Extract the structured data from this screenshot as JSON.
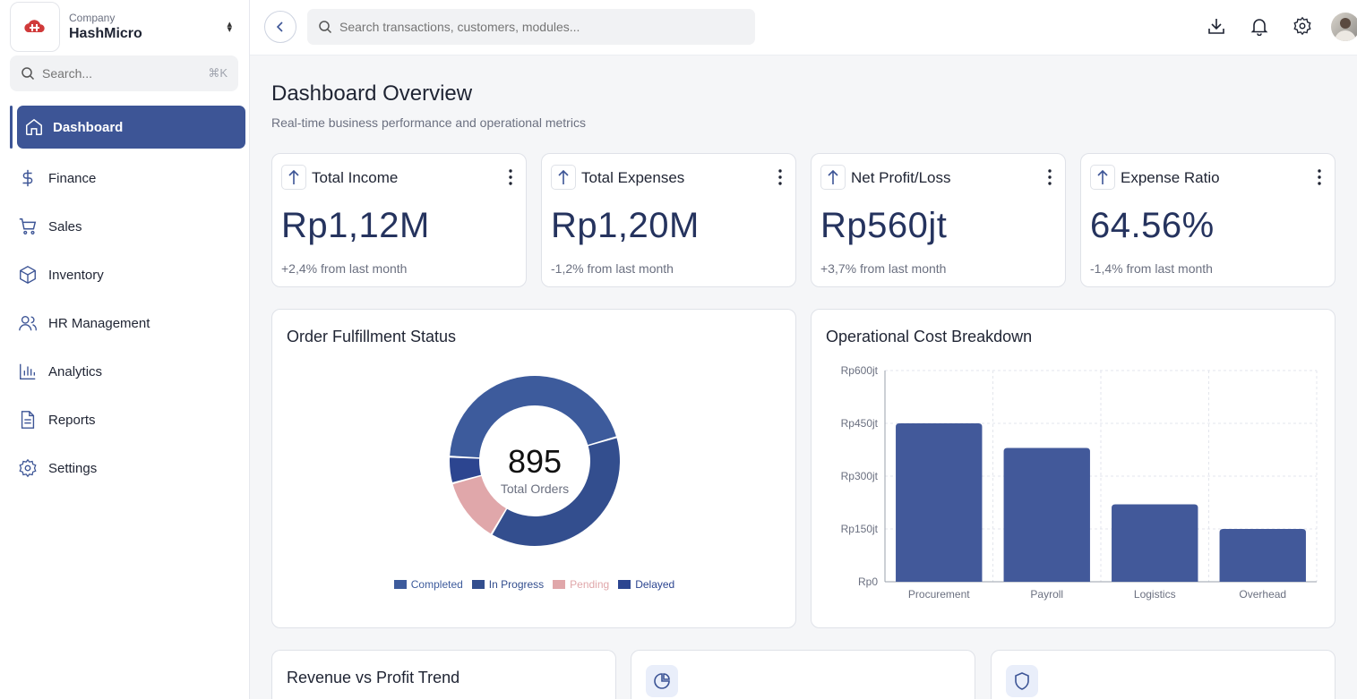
{
  "sidebar": {
    "company_label": "Company",
    "company_name": "HashMicro",
    "search_placeholder": "Search...",
    "search_shortcut": "⌘K",
    "items": [
      {
        "label": "Dashboard",
        "icon": "home-icon",
        "active": true
      },
      {
        "label": "Finance",
        "icon": "dollar-icon"
      },
      {
        "label": "Sales",
        "icon": "cart-icon"
      },
      {
        "label": "Inventory",
        "icon": "box-icon"
      },
      {
        "label": "HR Management",
        "icon": "users-icon"
      },
      {
        "label": "Analytics",
        "icon": "bar-chart-icon"
      },
      {
        "label": "Reports",
        "icon": "document-icon"
      },
      {
        "label": "Settings",
        "icon": "gear-icon"
      }
    ]
  },
  "topbar": {
    "search_placeholder": "Search transactions, customers, modules..."
  },
  "page": {
    "title": "Dashboard Overview",
    "subtitle": "Real-time business performance and operational metrics"
  },
  "kpis": [
    {
      "title": "Total Income",
      "value": "Rp1,12M",
      "change": "+2,4% from last month"
    },
    {
      "title": "Total Expenses",
      "value": "Rp1,20M",
      "change": "-1,2% from last month"
    },
    {
      "title": "Net Profit/Loss",
      "value": "Rp560jt",
      "change": "+3,7% from last month"
    },
    {
      "title": "Expense Ratio",
      "value": "64.56%",
      "change": "-1,4% from last month"
    }
  ],
  "fulfillment": {
    "title": "Order Fulfillment Status",
    "total": "895",
    "total_label": "Total Orders"
  },
  "cost": {
    "title": "Operational Cost Breakdown"
  },
  "trend": {
    "title": "Revenue vs Profit Trend"
  },
  "colors": {
    "primary": "#3d5596",
    "completed": "#3d5b9c",
    "in_progress": "#334e8e",
    "pending": "#e0a7aa",
    "delayed": "#2c4590"
  },
  "chart_data": [
    {
      "type": "pie",
      "title": "Order Fulfillment Status",
      "categories": [
        "Completed",
        "In Progress",
        "Pending",
        "Delayed"
      ],
      "values": [
        400,
        340,
        110,
        45
      ],
      "colors": [
        "#3d5b9c",
        "#334e8e",
        "#e0a7aa",
        "#2c4590"
      ],
      "legend": "bottom"
    },
    {
      "type": "bar",
      "title": "Operational Cost Breakdown",
      "categories": [
        "Procurement",
        "Payroll",
        "Logistics",
        "Overhead"
      ],
      "values": [
        450,
        380,
        220,
        150
      ],
      "ylim": [
        0,
        600
      ],
      "yticks": [
        "Rp0",
        "Rp150jt",
        "Rp300jt",
        "Rp450jt",
        "Rp600jt"
      ],
      "ytick_values": [
        0,
        150,
        300,
        450,
        600
      ],
      "grid": true,
      "color": "#42599a"
    }
  ]
}
